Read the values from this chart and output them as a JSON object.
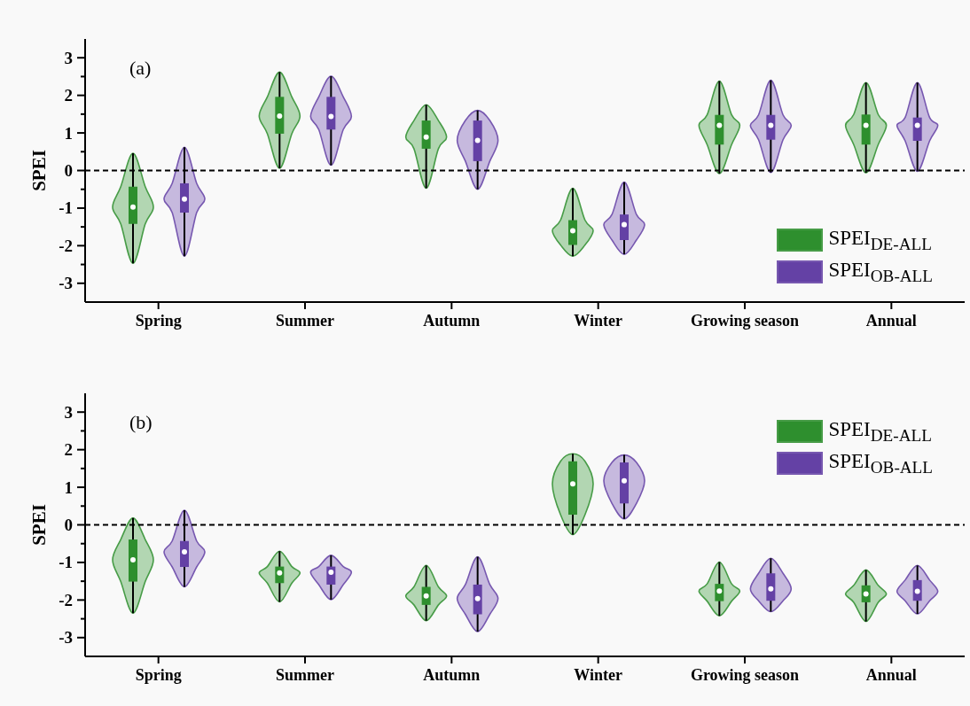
{
  "chart_data": [
    {
      "type": "box",
      "ylabel": "SPEI",
      "categories": [
        "Spring",
        "Summer",
        "Autumn",
        "Winter",
        "Growing season",
        "Annual"
      ],
      "series": [
        {
          "name": "SPEI$_{DE-ALL}$",
          "color": "#2e8f2e",
          "boxes": [
            {
              "low": -2.47,
              "q1": -1.42,
              "median": -0.97,
              "q3": -0.43,
              "high": 0.46
            },
            {
              "low": 0.06,
              "q1": 0.98,
              "median": 1.45,
              "q3": 1.96,
              "high": 2.62
            },
            {
              "low": -0.47,
              "q1": 0.58,
              "median": 0.89,
              "q3": 1.33,
              "high": 1.75
            },
            {
              "low": -2.28,
              "q1": -1.98,
              "median": -1.6,
              "q3": -1.32,
              "high": -0.47
            },
            {
              "low": -0.08,
              "q1": 0.69,
              "median": 1.2,
              "q3": 1.48,
              "high": 2.38
            },
            {
              "low": -0.06,
              "q1": 0.69,
              "median": 1.2,
              "q3": 1.49,
              "high": 2.34
            }
          ]
        },
        {
          "name": "SPEI$_{OB-ALL}$",
          "color": "#6441a5",
          "boxes": [
            {
              "low": -2.28,
              "q1": -1.12,
              "median": -0.76,
              "q3": -0.34,
              "high": 0.62
            },
            {
              "low": 0.14,
              "q1": 1.09,
              "median": 1.44,
              "q3": 1.96,
              "high": 2.51
            },
            {
              "low": -0.5,
              "q1": 0.25,
              "median": 0.8,
              "q3": 1.33,
              "high": 1.6
            },
            {
              "low": -2.23,
              "q1": -1.85,
              "median": -1.44,
              "q3": -1.17,
              "high": -0.31
            },
            {
              "low": -0.05,
              "q1": 0.82,
              "median": 1.2,
              "q3": 1.48,
              "high": 2.4
            },
            {
              "low": -0.02,
              "q1": 0.79,
              "median": 1.2,
              "q3": 1.41,
              "high": 2.34
            }
          ]
        }
      ],
      "ylim": [
        -3.5,
        3.5
      ],
      "yticks": [
        -3,
        {
          "value": -2.5,
          "label": null
        },
        -2,
        {
          "value": -1.5,
          "label": null
        },
        -1,
        {
          "value": -0.5,
          "label": null
        },
        0,
        {
          "value": 0.5,
          "label": null
        },
        1,
        {
          "value": 1.5,
          "label": null
        },
        2,
        {
          "value": 2.5,
          "label": null
        },
        3
      ],
      "ref_lines": [
        {
          "axis": "y",
          "value": 0,
          "color": "#000000",
          "line_style": "dashed"
        }
      ],
      "annotations": [
        "(a)"
      ],
      "legend": "bottom right"
    },
    {
      "type": "box",
      "ylabel": "SPEI",
      "categories": [
        "Spring",
        "Summer",
        "Autumn",
        "Winter",
        "Growing season",
        "Annual"
      ],
      "series": [
        {
          "name": "SPEI$_{DE-ALL}$",
          "color": "#2e8f2e",
          "boxes": [
            {
              "low": -2.35,
              "q1": -1.51,
              "median": -0.93,
              "q3": -0.39,
              "high": 0.18
            },
            {
              "low": -2.05,
              "q1": -1.55,
              "median": -1.28,
              "q3": -1.11,
              "high": -0.7
            },
            {
              "low": -2.55,
              "q1": -2.13,
              "median": -1.89,
              "q3": -1.65,
              "high": -1.08
            },
            {
              "low": -0.26,
              "q1": 0.27,
              "median": 1.09,
              "q3": 1.69,
              "high": 1.89
            },
            {
              "low": -2.42,
              "q1": -2.03,
              "median": -1.76,
              "q3": -1.57,
              "high": -0.99
            },
            {
              "low": -2.57,
              "q1": -2.06,
              "median": -1.84,
              "q3": -1.61,
              "high": -1.2
            }
          ]
        },
        {
          "name": "SPEI$_{OB-ALL}$",
          "color": "#6441a5",
          "boxes": [
            {
              "low": -1.65,
              "q1": -1.12,
              "median": -0.72,
              "q3": -0.43,
              "high": 0.39
            },
            {
              "low": -1.99,
              "q1": -1.59,
              "median": -1.26,
              "q3": -1.11,
              "high": -0.81
            },
            {
              "low": -2.84,
              "q1": -2.38,
              "median": -1.96,
              "q3": -1.59,
              "high": -0.85
            },
            {
              "low": 0.16,
              "q1": 0.57,
              "median": 1.17,
              "q3": 1.66,
              "high": 1.86
            },
            {
              "low": -2.31,
              "q1": -2.02,
              "median": -1.7,
              "q3": -1.29,
              "high": -0.89
            },
            {
              "low": -2.37,
              "q1": -2.02,
              "median": -1.77,
              "q3": -1.47,
              "high": -1.08
            }
          ]
        }
      ],
      "ylim": [
        -3.5,
        3.5
      ],
      "yticks": [
        -3,
        {
          "value": -2.5,
          "label": null
        },
        -2,
        {
          "value": -1.5,
          "label": null
        },
        -1,
        {
          "value": -0.5,
          "label": null
        },
        0,
        {
          "value": 0.5,
          "label": null
        },
        1,
        {
          "value": 1.5,
          "label": null
        },
        2,
        {
          "value": 2.5,
          "label": null
        },
        3
      ],
      "ref_lines": [
        {
          "axis": "y",
          "value": 0,
          "color": "#000000",
          "line_style": "dashed"
        }
      ],
      "annotations": [
        "(b)"
      ],
      "legend": "top right"
    }
  ]
}
